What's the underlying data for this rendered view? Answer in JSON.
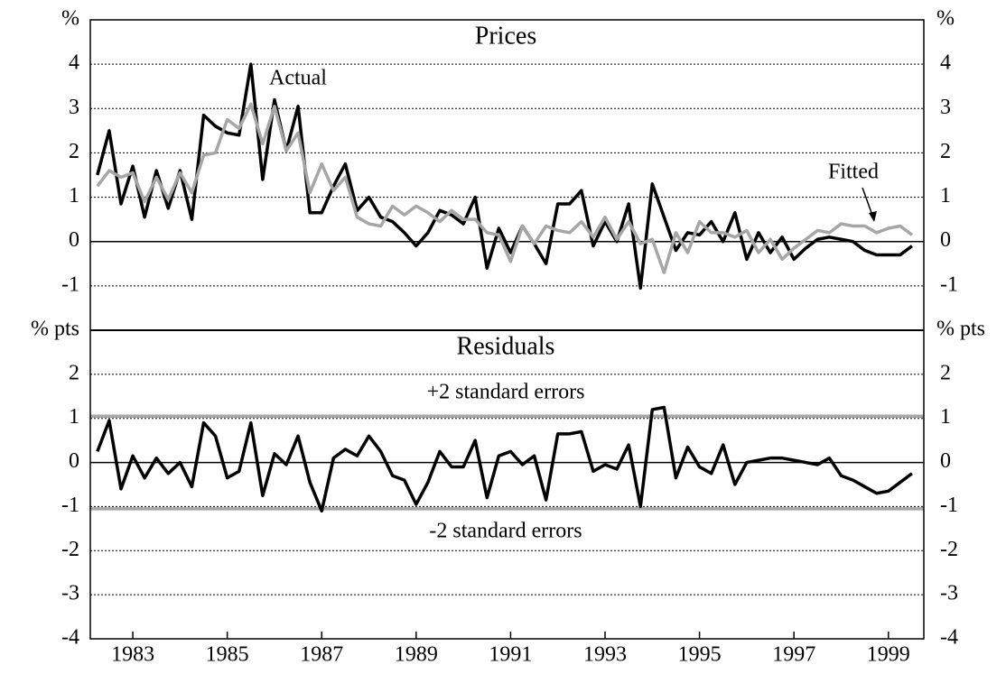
{
  "chart_data": {
    "type": "line",
    "x": [
      1982.25,
      1982.5,
      1982.75,
      1983,
      1983.25,
      1983.5,
      1983.75,
      1984,
      1984.25,
      1984.5,
      1984.75,
      1985,
      1985.25,
      1985.5,
      1985.75,
      1986,
      1986.25,
      1986.5,
      1986.75,
      1987,
      1987.25,
      1987.5,
      1987.75,
      1988,
      1988.25,
      1988.5,
      1988.75,
      1989,
      1989.25,
      1989.5,
      1989.75,
      1990,
      1990.25,
      1990.5,
      1990.75,
      1991,
      1991.25,
      1991.5,
      1991.75,
      1992,
      1992.25,
      1992.5,
      1992.75,
      1993,
      1993.25,
      1993.5,
      1993.75,
      1994,
      1994.25,
      1994.5,
      1994.75,
      1995,
      1995.25,
      1995.5,
      1995.75,
      1996,
      1996.25,
      1996.5,
      1996.75,
      1997,
      1997.25,
      1997.5,
      1997.75,
      1998,
      1998.25,
      1998.5,
      1998.75,
      1999,
      1999.25,
      1999.5
    ],
    "xlim": [
      1982.1,
      1999.75
    ],
    "xticks": [
      1983,
      1985,
      1987,
      1989,
      1991,
      1993,
      1995,
      1997,
      1999
    ],
    "panels": [
      {
        "title": "Prices",
        "unit": "%",
        "ylim": [
          -2,
          5
        ],
        "yticks": [
          -1,
          0,
          1,
          2,
          3,
          4
        ],
        "grid": true,
        "series": [
          {
            "name": "Actual",
            "color": "#000000",
            "values": [
              1.5,
              2.5,
              0.85,
              1.7,
              0.55,
              1.6,
              0.75,
              1.6,
              0.5,
              2.85,
              2.6,
              2.45,
              2.4,
              4.0,
              1.4,
              3.2,
              2.05,
              3.05,
              0.65,
              0.65,
              1.25,
              1.75,
              0.7,
              1.0,
              0.55,
              0.45,
              0.2,
              -0.1,
              0.2,
              0.7,
              0.6,
              0.4,
              1.0,
              -0.6,
              0.3,
              -0.25,
              0.35,
              -0.05,
              -0.5,
              0.85,
              0.85,
              1.15,
              -0.1,
              0.45,
              0,
              0.85,
              -1.05,
              1.3,
              0.55,
              -0.2,
              0.2,
              0.15,
              0.45,
              0,
              0.65,
              -0.4,
              0.2,
              -0.25,
              0.1,
              -0.4,
              -0.15,
              0.05,
              0.1,
              0.05,
              0,
              -0.2,
              -0.3,
              -0.3,
              -0.3,
              -0.1
            ]
          },
          {
            "name": "Fitted",
            "color": "#a6a6a6",
            "values": [
              1.25,
              1.6,
              1.45,
              1.55,
              0.9,
              1.45,
              0.95,
              1.55,
              1.1,
              1.95,
              2.0,
              2.75,
              2.55,
              3.1,
              2.2,
              3.05,
              2.05,
              2.45,
              1.1,
              1.75,
              1.15,
              1.45,
              0.55,
              0.4,
              0.35,
              0.8,
              0.6,
              0.8,
              0.65,
              0.45,
              0.7,
              0.5,
              0.5,
              0.2,
              0.15,
              -0.45,
              0.35,
              -0.05,
              0.35,
              0.25,
              0.2,
              0.45,
              0.1,
              0.55,
              0.05,
              0.45,
              -0.05,
              0.05,
              -0.7,
              0.2,
              -0.25,
              0.45,
              0.2,
              0.2,
              0.1,
              0.25,
              -0.25,
              0.05,
              -0.4,
              -0.15,
              0.05,
              0.25,
              0.2,
              0.4,
              0.35,
              0.35,
              0.2,
              0.3,
              0.35,
              0.15
            ]
          }
        ]
      },
      {
        "title": "Residuals",
        "unit": "% pts",
        "ylim": [
          -4,
          3
        ],
        "yticks": [
          -4,
          -3,
          -2,
          -1,
          0,
          1,
          2
        ],
        "grid": true,
        "series": [
          {
            "name": "Residuals",
            "color": "#000000",
            "values": [
              0.25,
              0.95,
              -0.6,
              0.15,
              -0.35,
              0.1,
              -0.25,
              0,
              -0.55,
              0.9,
              0.6,
              -0.35,
              -0.2,
              0.9,
              -0.75,
              0.2,
              -0.05,
              0.6,
              -0.45,
              -1.1,
              0.1,
              0.3,
              0.15,
              0.6,
              0.25,
              -0.3,
              -0.4,
              -0.95,
              -0.45,
              0.25,
              -0.1,
              -0.1,
              0.5,
              -0.8,
              0.15,
              0.25,
              -0.05,
              0.15,
              -0.85,
              0.65,
              0.65,
              0.7,
              -0.2,
              -0.05,
              -0.15,
              0.4,
              -1.0,
              1.2,
              1.25,
              -0.35,
              0.35,
              -0.1,
              -0.25,
              0.4,
              -0.5,
              0,
              0.05,
              0.1,
              0.1,
              0.05,
              0,
              -0.05,
              0.1,
              -0.3,
              -0.4,
              -0.55,
              -0.7,
              -0.65,
              -0.45,
              -0.25
            ]
          }
        ],
        "reference_lines": [
          {
            "label": "+2 standard errors",
            "value": 1.05,
            "color": "#a6a6a6"
          },
          {
            "label": "-2 standard errors",
            "value": -1.05,
            "color": "#a6a6a6"
          }
        ]
      }
    ]
  }
}
